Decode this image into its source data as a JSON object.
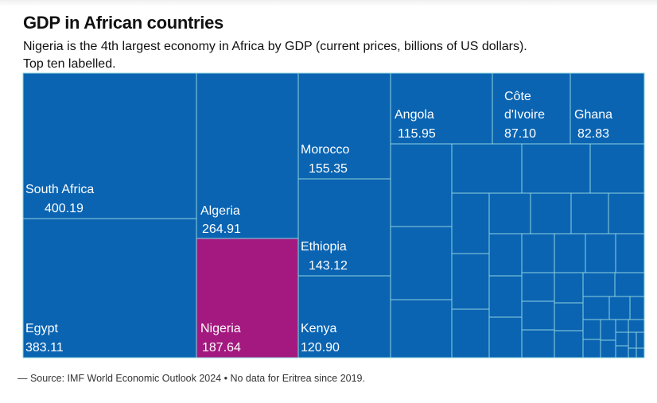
{
  "title": "GDP in African countries",
  "subtitle_line1": "Nigeria is the 4th largest economy in Africa by GDP (current prices, billions of US dollars).",
  "subtitle_line2": "Top ten labelled.",
  "source": "— Source: IMF World Economic Outlook 2024 • No data for Eritrea since 2019.",
  "colors": {
    "default": "#0A64B2",
    "highlight": "#A4197F",
    "border": "#8ED2DE",
    "label": "#ffffff"
  },
  "chart_data": {
    "type": "treemap",
    "unit": "billions of US dollars",
    "highlight": "Nigeria",
    "labelled": [
      {
        "name": "South Africa",
        "value": "400.19"
      },
      {
        "name": "Egypt",
        "value": "383.11"
      },
      {
        "name": "Algeria",
        "value": "264.91"
      },
      {
        "name": "Nigeria",
        "value": "187.64"
      },
      {
        "name": "Morocco",
        "value": "155.35"
      },
      {
        "name": "Ethiopia",
        "value": "143.12"
      },
      {
        "name": "Kenya",
        "value": "120.90"
      },
      {
        "name": "Angola",
        "value": "115.95"
      },
      {
        "name": "Côte\nd'Ivoire",
        "value": "87.10"
      },
      {
        "name": "Ghana",
        "value": "82.83"
      }
    ]
  }
}
